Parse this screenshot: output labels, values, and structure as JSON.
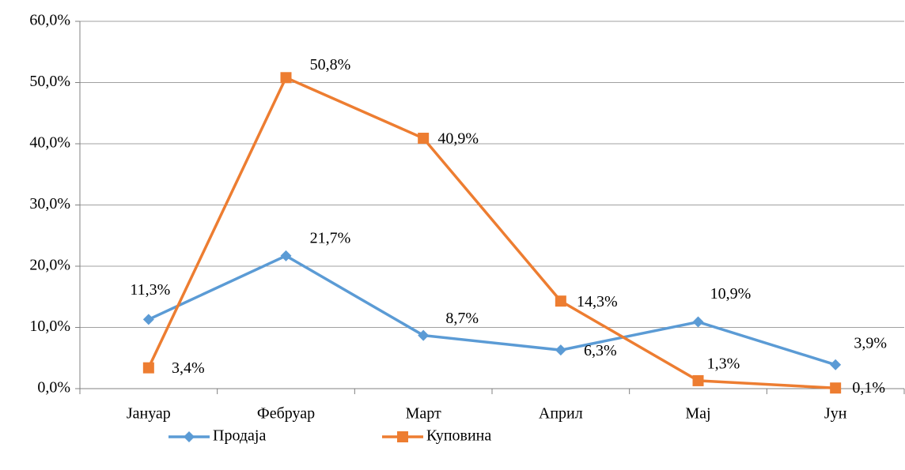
{
  "chart_data": {
    "type": "line",
    "categories": [
      "Јануар",
      "Фебруар",
      "Март",
      "Април",
      "Мај",
      "Јун"
    ],
    "series": [
      {
        "name": "Продаја",
        "color": "#5b9bd5",
        "marker": "diamond",
        "values": [
          11.3,
          21.7,
          8.7,
          6.3,
          10.9,
          3.9
        ],
        "value_labels": [
          "11,3%",
          "21,7%",
          "8,7%",
          "6,3%",
          "10,9%",
          "3,9%"
        ]
      },
      {
        "name": "Куповина",
        "color": "#ed7d31",
        "marker": "square",
        "values": [
          3.4,
          50.8,
          40.9,
          14.3,
          1.3,
          0.1
        ],
        "value_labels": [
          "3,4%",
          "50,8%",
          "40,9%",
          "14,3%",
          "1,3%",
          "0,1%"
        ]
      }
    ],
    "ylim": [
      0,
      60
    ],
    "yticks": [
      {
        "value": 0,
        "label": "0,0%"
      },
      {
        "value": 10,
        "label": "10,0%"
      },
      {
        "value": 20,
        "label": "20,0%"
      },
      {
        "value": 30,
        "label": "30,0%"
      },
      {
        "value": 40,
        "label": "40,0%"
      },
      {
        "value": 50,
        "label": "50,0%"
      },
      {
        "value": 60,
        "label": "60,0%"
      }
    ],
    "grid": true,
    "legend": "bottom"
  }
}
